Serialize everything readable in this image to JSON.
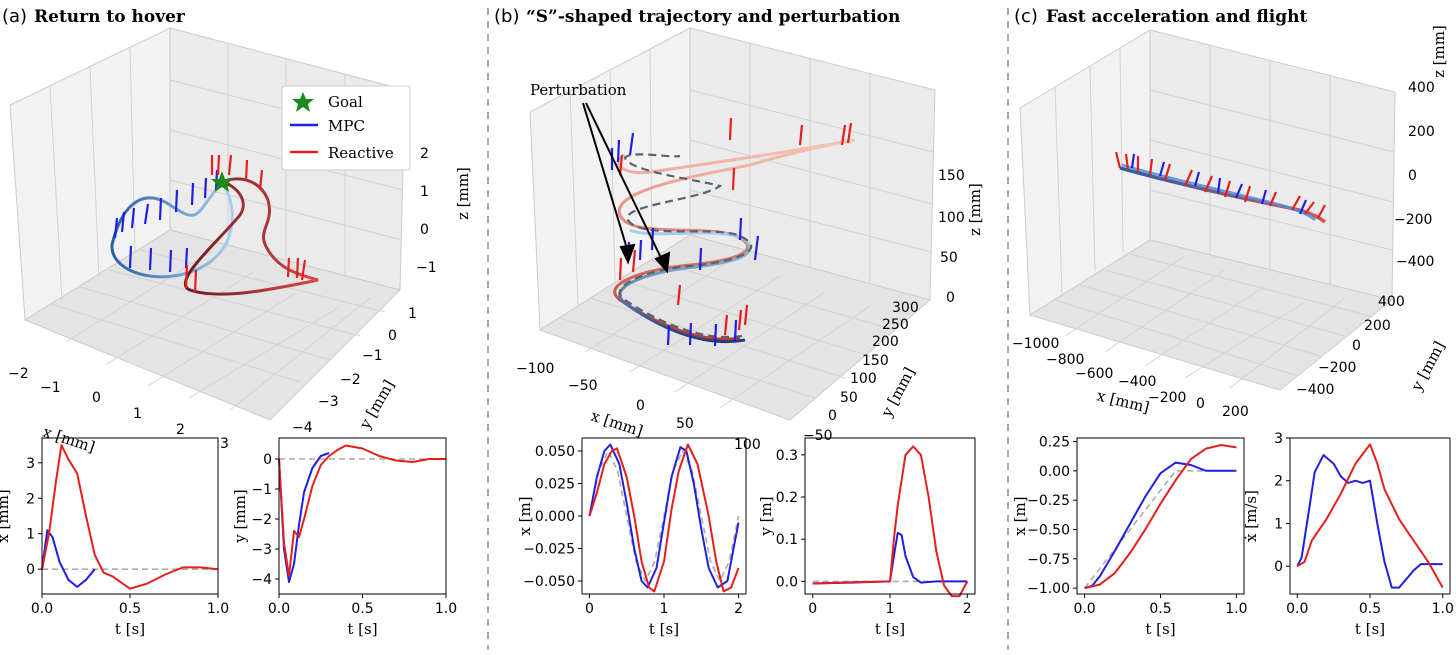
{
  "panels": [
    {
      "id": "a",
      "label": "(a)",
      "title": "Return to hover"
    },
    {
      "id": "b",
      "label": "(b)",
      "title": "“S”-shaped trajectory and perturbation"
    },
    {
      "id": "c",
      "label": "(c)",
      "title": "Fast acceleration and flight"
    }
  ],
  "legend": {
    "goal": "Goal",
    "mpc": "MPC",
    "reactive": "Reactive"
  },
  "annotation": {
    "perturbation": "Perturbation"
  },
  "colors": {
    "mpc": "#1f1fe0",
    "reactive": "#e61e1e",
    "reference": "#aaaaaa",
    "goal": "#1a8a1a"
  },
  "views3d": [
    {
      "id": "a",
      "xlabel": "x [mm]",
      "ylabel": "y [mm]",
      "zlabel": "z [mm]",
      "xticks": [
        "−2",
        "−1",
        "0",
        "1",
        "2",
        "3"
      ],
      "yticks": [
        "−4",
        "−3",
        "−2",
        "−1",
        "0",
        "1"
      ],
      "zticks": [
        "−1",
        "0",
        "1",
        "2"
      ]
    },
    {
      "id": "b",
      "xlabel": "x [mm]",
      "ylabel": "y [mm]",
      "zlabel": "z [mm]",
      "xticks": [
        "−100",
        "−50",
        "0",
        "50",
        "100"
      ],
      "yticks": [
        "−50",
        "0",
        "50",
        "100",
        "150",
        "200",
        "250",
        "300"
      ],
      "zticks": [
        "0",
        "50",
        "100",
        "150"
      ]
    },
    {
      "id": "c",
      "xlabel": "x [mm]",
      "ylabel": "y [mm]",
      "zlabel": "z [mm]",
      "xticks": [
        "−1000",
        "−800",
        "−600",
        "−400",
        "−200",
        "0",
        "200"
      ],
      "yticks": [
        "−400",
        "−200",
        "0",
        "200",
        "400"
      ],
      "zticks": [
        "−400",
        "−200",
        "0",
        "200",
        "400"
      ]
    }
  ],
  "chart_data": [
    {
      "type": "line",
      "panel": "a",
      "xlabel": "t [s]",
      "ylabel": "x [mm]",
      "xlim": [
        0,
        1
      ],
      "ylim": [
        -0.7,
        3.7
      ],
      "xticks": [
        0,
        0.5,
        1.0
      ],
      "xtick_labels": [
        "0.0",
        "0.5",
        "1.0"
      ],
      "yticks": [
        0,
        1,
        2,
        3
      ],
      "ytick_labels": [
        "0",
        "1",
        "2",
        "3"
      ],
      "series": [
        {
          "role": "reference",
          "x": [
            0,
            0.3,
            1.0
          ],
          "y": [
            0,
            0,
            0
          ]
        },
        {
          "role": "mpc",
          "x": [
            0,
            0.03,
            0.06,
            0.1,
            0.15,
            0.2,
            0.25,
            0.3
          ],
          "y": [
            0,
            1.1,
            0.9,
            0.2,
            -0.3,
            -0.5,
            -0.3,
            0
          ]
        },
        {
          "role": "reactive",
          "x": [
            0,
            0.04,
            0.08,
            0.11,
            0.15,
            0.2,
            0.25,
            0.3,
            0.35,
            0.4,
            0.5,
            0.6,
            0.7,
            0.8,
            0.9,
            1.0
          ],
          "y": [
            0,
            1.0,
            2.5,
            3.5,
            3.1,
            2.7,
            1.5,
            0.4,
            -0.1,
            -0.2,
            -0.55,
            -0.4,
            -0.15,
            0.05,
            0.05,
            0
          ]
        }
      ]
    },
    {
      "type": "line",
      "panel": "a",
      "xlabel": "t [s]",
      "ylabel": "y [mm]",
      "xlim": [
        0,
        1
      ],
      "ylim": [
        -4.5,
        0.7
      ],
      "xticks": [
        0,
        0.5,
        1.0
      ],
      "xtick_labels": [
        "0.0",
        "0.5",
        "1.0"
      ],
      "yticks": [
        -4,
        -3,
        -2,
        -1,
        0
      ],
      "ytick_labels": [
        "−4",
        "−3",
        "−2",
        "−1",
        "0"
      ],
      "series": [
        {
          "role": "reference",
          "x": [
            0,
            1.0
          ],
          "y": [
            0,
            0
          ]
        },
        {
          "role": "mpc",
          "x": [
            0,
            0.03,
            0.06,
            0.09,
            0.12,
            0.15,
            0.2,
            0.25,
            0.3
          ],
          "y": [
            0,
            -3.0,
            -4.1,
            -3.5,
            -2.2,
            -1.1,
            -0.3,
            0.1,
            0.2
          ]
        },
        {
          "role": "reactive",
          "x": [
            0,
            0.03,
            0.06,
            0.09,
            0.12,
            0.15,
            0.2,
            0.25,
            0.3,
            0.35,
            0.4,
            0.5,
            0.6,
            0.7,
            0.8,
            0.9,
            1.0
          ],
          "y": [
            0,
            -2.8,
            -3.9,
            -2.4,
            -2.6,
            -2.0,
            -0.9,
            -0.2,
            0.1,
            0.3,
            0.45,
            0.35,
            0.1,
            -0.05,
            -0.1,
            0,
            0
          ]
        }
      ]
    },
    {
      "type": "line",
      "panel": "b",
      "xlabel": "t [s]",
      "ylabel": "x [m]",
      "xlim": [
        -0.1,
        2.1
      ],
      "ylim": [
        -0.06,
        0.06
      ],
      "xticks": [
        0,
        1,
        2
      ],
      "xtick_labels": [
        "0",
        "1",
        "2"
      ],
      "yticks": [
        -0.05,
        -0.025,
        0,
        0.025,
        0.05
      ],
      "ytick_labels": [
        "−0.050",
        "−0.025",
        "0.000",
        "0.025",
        "0.050"
      ],
      "series": [
        {
          "role": "reference",
          "x": [
            0,
            0.125,
            0.25,
            0.375,
            0.5,
            0.625,
            0.75,
            0.875,
            1.0,
            1.125,
            1.25,
            1.375,
            1.5,
            1.625,
            1.75,
            1.875,
            2.0
          ],
          "y": [
            0,
            0.035,
            0.05,
            0.035,
            0,
            -0.035,
            -0.05,
            -0.035,
            0,
            0.035,
            0.05,
            0.035,
            0,
            -0.035,
            -0.05,
            -0.035,
            0
          ]
        },
        {
          "role": "mpc",
          "x": [
            0,
            0.1,
            0.2,
            0.28,
            0.4,
            0.5,
            0.6,
            0.7,
            0.78,
            0.9,
            1.0,
            1.1,
            1.22,
            1.3,
            1.4,
            1.5,
            1.6,
            1.72,
            1.85,
            2.0
          ],
          "y": [
            0,
            0.03,
            0.05,
            0.055,
            0.04,
            0.01,
            -0.025,
            -0.05,
            -0.055,
            -0.04,
            -0.005,
            0.03,
            0.053,
            0.05,
            0.025,
            -0.01,
            -0.04,
            -0.055,
            -0.05,
            -0.005
          ]
        },
        {
          "role": "reactive",
          "x": [
            0,
            0.1,
            0.2,
            0.3,
            0.37,
            0.5,
            0.6,
            0.7,
            0.8,
            0.87,
            1.0,
            1.1,
            1.2,
            1.32,
            1.45,
            1.6,
            1.7,
            1.8,
            1.9,
            2.0
          ],
          "y": [
            0,
            0.018,
            0.04,
            0.05,
            0.052,
            0.03,
            0,
            -0.035,
            -0.055,
            -0.058,
            -0.035,
            0.005,
            0.035,
            0.055,
            0.04,
            0,
            -0.035,
            -0.058,
            -0.055,
            -0.04
          ]
        }
      ]
    },
    {
      "type": "line",
      "panel": "b",
      "xlabel": "t [s]",
      "ylabel": "y [m]",
      "xlim": [
        -0.1,
        2.1
      ],
      "ylim": [
        -0.03,
        0.34
      ],
      "xticks": [
        0,
        1,
        2
      ],
      "xtick_labels": [
        "0",
        "1",
        "2"
      ],
      "yticks": [
        0,
        0.1,
        0.2,
        0.3
      ],
      "ytick_labels": [
        "0.0",
        "0.1",
        "0.2",
        "0.3"
      ],
      "series": [
        {
          "role": "reference",
          "x": [
            0,
            2.0
          ],
          "y": [
            0,
            0
          ]
        },
        {
          "role": "mpc",
          "x": [
            0,
            0.5,
            1.0,
            1.05,
            1.1,
            1.15,
            1.2,
            1.3,
            1.4,
            1.6,
            2.0
          ],
          "y": [
            -0.005,
            -0.003,
            0,
            0.06,
            0.115,
            0.11,
            0.06,
            0.01,
            -0.003,
            0,
            0
          ]
        },
        {
          "role": "reactive",
          "x": [
            0,
            0.5,
            1.0,
            1.05,
            1.1,
            1.2,
            1.3,
            1.4,
            1.5,
            1.6,
            1.7,
            1.8,
            1.9,
            2.0
          ],
          "y": [
            -0.005,
            -0.002,
            0,
            0.1,
            0.18,
            0.3,
            0.32,
            0.3,
            0.2,
            0.07,
            -0.01,
            -0.035,
            -0.035,
            0.0
          ]
        }
      ]
    },
    {
      "type": "line",
      "panel": "c",
      "xlabel": "t [s]",
      "ylabel": "x [m]",
      "xlim": [
        -0.05,
        1.05
      ],
      "ylim": [
        -1.05,
        0.28
      ],
      "xticks": [
        0,
        0.5,
        1.0
      ],
      "xtick_labels": [
        "0.0",
        "0.5",
        "1.0"
      ],
      "yticks": [
        -1.0,
        -0.75,
        -0.5,
        -0.25,
        0,
        0.25
      ],
      "ytick_labels": [
        "−1.00",
        "−0.75",
        "−0.50",
        "−0.25",
        "0.00",
        "0.25"
      ],
      "series": [
        {
          "role": "reference",
          "x": [
            0,
            0.6,
            1.0
          ],
          "y": [
            -1.0,
            0,
            0
          ]
        },
        {
          "role": "mpc",
          "x": [
            0,
            0.05,
            0.1,
            0.2,
            0.3,
            0.4,
            0.5,
            0.6,
            0.7,
            0.8,
            0.9,
            1.0
          ],
          "y": [
            -1.0,
            -0.98,
            -0.9,
            -0.68,
            -0.45,
            -0.22,
            -0.02,
            0.07,
            0.05,
            0.0,
            0.0,
            0.0
          ]
        },
        {
          "role": "reactive",
          "x": [
            0,
            0.1,
            0.2,
            0.3,
            0.4,
            0.5,
            0.6,
            0.7,
            0.8,
            0.9,
            1.0
          ],
          "y": [
            -1.0,
            -0.97,
            -0.87,
            -0.7,
            -0.5,
            -0.28,
            -0.08,
            0.1,
            0.19,
            0.22,
            0.2
          ]
        }
      ]
    },
    {
      "type": "line",
      "panel": "c",
      "xlabel": "t [s]",
      "ylabel": "ẋ [m/s]",
      "xlim": [
        -0.05,
        1.05
      ],
      "ylim": [
        -0.65,
        3.0
      ],
      "xticks": [
        0,
        0.5,
        1.0
      ],
      "xtick_labels": [
        "0.0",
        "0.5",
        "1.0"
      ],
      "yticks": [
        0,
        1,
        2,
        3
      ],
      "ytick_labels": [
        "0",
        "1",
        "2",
        "3"
      ],
      "series": [
        {
          "role": "mpc",
          "x": [
            0,
            0.03,
            0.08,
            0.12,
            0.18,
            0.25,
            0.3,
            0.35,
            0.4,
            0.45,
            0.5,
            0.55,
            0.6,
            0.65,
            0.7,
            0.75,
            0.8,
            0.85,
            0.9,
            0.95,
            1.0
          ],
          "y": [
            0,
            0.2,
            1.3,
            2.2,
            2.6,
            2.4,
            2.1,
            1.95,
            2.0,
            1.95,
            2.0,
            1.0,
            0.1,
            -0.5,
            -0.5,
            -0.3,
            -0.1,
            0.05,
            0.05,
            0.05,
            0.05
          ]
        },
        {
          "role": "reactive",
          "x": [
            0,
            0.05,
            0.1,
            0.2,
            0.3,
            0.4,
            0.5,
            0.55,
            0.6,
            0.7,
            0.8,
            0.9,
            1.0
          ],
          "y": [
            0,
            0.1,
            0.6,
            1.1,
            1.7,
            2.4,
            2.85,
            2.4,
            1.8,
            1.1,
            0.6,
            0.1,
            -0.5
          ]
        }
      ]
    }
  ]
}
